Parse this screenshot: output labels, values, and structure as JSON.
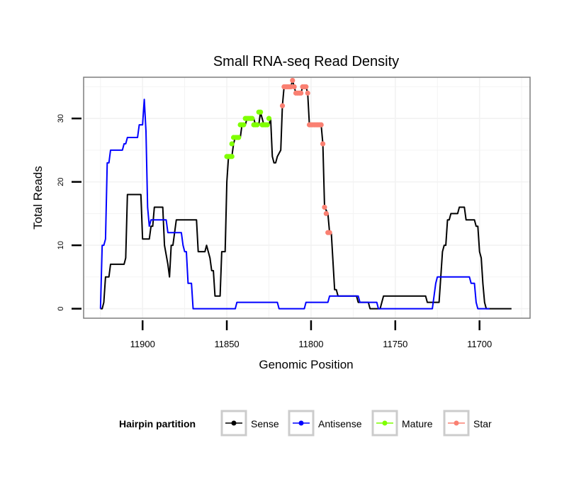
{
  "chart_data": {
    "type": "line",
    "title": "Small RNA-seq Read Density",
    "xlabel": "Genomic Position",
    "ylabel": "Total Reads",
    "x_reversed": true,
    "xlim": [
      11935,
      11670
    ],
    "ylim": [
      -1.5,
      36.5
    ],
    "x_ticks": [
      11900,
      11850,
      11800,
      11750,
      11700
    ],
    "y_ticks": [
      0,
      10,
      20,
      30
    ],
    "grid": true,
    "legend": {
      "title": "Hairpin partition",
      "position": "bottom",
      "entries": [
        {
          "label": "Sense",
          "color": "#000000"
        },
        {
          "label": "Antisense",
          "color": "#0000ff"
        },
        {
          "label": "Mature",
          "color": "#7fff00"
        },
        {
          "label": "Star",
          "color": "#fa8072"
        }
      ]
    },
    "series": [
      {
        "name": "Sense",
        "color": "#000000",
        "kind": "line",
        "points": [
          [
            11925,
            0
          ],
          [
            11924,
            0
          ],
          [
            11923,
            1
          ],
          [
            11922,
            5
          ],
          [
            11920,
            5
          ],
          [
            11919,
            7
          ],
          [
            11911,
            7
          ],
          [
            11910,
            8
          ],
          [
            11909,
            18
          ],
          [
            11901,
            18
          ],
          [
            11900,
            11
          ],
          [
            11896,
            11
          ],
          [
            11895,
            13
          ],
          [
            11894,
            13
          ],
          [
            11893,
            16
          ],
          [
            11888,
            16
          ],
          [
            11887,
            10
          ],
          [
            11885,
            7
          ],
          [
            11884,
            5
          ],
          [
            11883,
            10
          ],
          [
            11882,
            10
          ],
          [
            11880,
            14
          ],
          [
            11868,
            14
          ],
          [
            11867,
            9
          ],
          [
            11863,
            9
          ],
          [
            11862,
            10
          ],
          [
            11861,
            9
          ],
          [
            11860,
            8
          ],
          [
            11859,
            6
          ],
          [
            11858,
            6
          ],
          [
            11857,
            2
          ],
          [
            11854,
            2
          ],
          [
            11853,
            9
          ],
          [
            11851,
            9
          ],
          [
            11850,
            20
          ],
          [
            11849,
            24
          ],
          [
            11847,
            24
          ],
          [
            11846,
            26
          ],
          [
            11845,
            27
          ],
          [
            11842,
            27
          ],
          [
            11841,
            29
          ],
          [
            11839,
            29
          ],
          [
            11838,
            30
          ],
          [
            11834,
            30
          ],
          [
            11833,
            29
          ],
          [
            11831,
            29
          ],
          [
            11830,
            31
          ],
          [
            11828,
            29
          ],
          [
            11825,
            29
          ],
          [
            11824,
            30
          ],
          [
            11823,
            24
          ],
          [
            11822,
            23
          ],
          [
            11821,
            23
          ],
          [
            11820,
            24
          ],
          [
            11818,
            25
          ],
          [
            11817,
            32
          ],
          [
            11816,
            35
          ],
          [
            11812,
            35
          ],
          [
            11811,
            36
          ],
          [
            11810,
            35
          ],
          [
            11809,
            34
          ],
          [
            11806,
            34
          ],
          [
            11805,
            35
          ],
          [
            11803,
            35
          ],
          [
            11802,
            34
          ],
          [
            11801,
            29
          ],
          [
            11794,
            29
          ],
          [
            11793,
            26
          ],
          [
            11792,
            16
          ],
          [
            11790,
            15
          ],
          [
            11789,
            12
          ],
          [
            11788,
            12
          ],
          [
            11786,
            3
          ],
          [
            11785,
            3
          ],
          [
            11784,
            2
          ],
          [
            11773,
            2
          ],
          [
            11772,
            1
          ],
          [
            11766,
            1
          ],
          [
            11765,
            0
          ],
          [
            11759,
            0
          ],
          [
            11758,
            1
          ],
          [
            11757,
            2
          ],
          [
            11732,
            2
          ],
          [
            11731,
            1
          ],
          [
            11724,
            1
          ],
          [
            11723,
            5
          ],
          [
            11722,
            9
          ],
          [
            11721,
            10
          ],
          [
            11720,
            10
          ],
          [
            11719,
            14
          ],
          [
            11718,
            14
          ],
          [
            11717,
            15
          ],
          [
            11713,
            15
          ],
          [
            11712,
            16
          ],
          [
            11709,
            16
          ],
          [
            11708,
            14
          ],
          [
            11703,
            14
          ],
          [
            11702,
            13
          ],
          [
            11701,
            13
          ],
          [
            11700,
            9
          ],
          [
            11699,
            8
          ],
          [
            11698,
            4
          ],
          [
            11697,
            1
          ],
          [
            11696,
            0
          ],
          [
            11681,
            0
          ]
        ]
      },
      {
        "name": "Antisense",
        "color": "#0000ff",
        "kind": "line",
        "points": [
          [
            11925,
            0
          ],
          [
            11924,
            10
          ],
          [
            11923,
            10
          ],
          [
            11922,
            11
          ],
          [
            11921,
            23
          ],
          [
            11920,
            23
          ],
          [
            11919,
            25
          ],
          [
            11912,
            25
          ],
          [
            11911,
            26
          ],
          [
            11910,
            26
          ],
          [
            11909,
            27
          ],
          [
            11903,
            27
          ],
          [
            11902,
            29
          ],
          [
            11900,
            29
          ],
          [
            11899,
            33
          ],
          [
            11898,
            28
          ],
          [
            11897,
            16
          ],
          [
            11896,
            13
          ],
          [
            11895,
            14
          ],
          [
            11886,
            14
          ],
          [
            11885,
            12
          ],
          [
            11877,
            12
          ],
          [
            11876,
            10
          ],
          [
            11875,
            9
          ],
          [
            11874,
            9
          ],
          [
            11873,
            4
          ],
          [
            11871,
            4
          ],
          [
            11870,
            0
          ],
          [
            11845,
            0
          ],
          [
            11844,
            1
          ],
          [
            11820,
            1
          ],
          [
            11819,
            0
          ],
          [
            11804,
            0
          ],
          [
            11803,
            1
          ],
          [
            11790,
            1
          ],
          [
            11789,
            2
          ],
          [
            11772,
            2
          ],
          [
            11771,
            1
          ],
          [
            11761,
            1
          ],
          [
            11760,
            0
          ],
          [
            11728,
            0
          ],
          [
            11727,
            2
          ],
          [
            11726,
            4
          ],
          [
            11725,
            5
          ],
          [
            11706,
            5
          ],
          [
            11705,
            4
          ],
          [
            11703,
            4
          ],
          [
            11702,
            1
          ],
          [
            11701,
            0
          ],
          [
            11694,
            0
          ]
        ]
      },
      {
        "name": "Mature",
        "color": "#7fff00",
        "kind": "points",
        "points": [
          [
            11850,
            24
          ],
          [
            11849,
            24
          ],
          [
            11848,
            24
          ],
          [
            11847,
            24
          ],
          [
            11847,
            26
          ],
          [
            11846,
            27
          ],
          [
            11845,
            27
          ],
          [
            11844,
            27
          ],
          [
            11843,
            27
          ],
          [
            11842,
            29
          ],
          [
            11841,
            29
          ],
          [
            11840,
            29
          ],
          [
            11839,
            30
          ],
          [
            11838,
            30
          ],
          [
            11837,
            30
          ],
          [
            11836,
            30
          ],
          [
            11835,
            30
          ],
          [
            11834,
            29
          ],
          [
            11833,
            29
          ],
          [
            11832,
            29
          ],
          [
            11831,
            31
          ],
          [
            11830,
            31
          ],
          [
            11829,
            29
          ],
          [
            11828,
            29
          ],
          [
            11827,
            29
          ],
          [
            11826,
            29
          ],
          [
            11825,
            30
          ]
        ]
      },
      {
        "name": "Star",
        "color": "#fa8072",
        "kind": "points",
        "points": [
          [
            11817,
            32
          ],
          [
            11816,
            35
          ],
          [
            11815,
            35
          ],
          [
            11814,
            35
          ],
          [
            11813,
            35
          ],
          [
            11812,
            35
          ],
          [
            11811,
            36
          ],
          [
            11810,
            35
          ],
          [
            11809,
            34
          ],
          [
            11808,
            34
          ],
          [
            11807,
            34
          ],
          [
            11806,
            34
          ],
          [
            11805,
            35
          ],
          [
            11804,
            35
          ],
          [
            11803,
            35
          ],
          [
            11802,
            34
          ],
          [
            11801,
            29
          ],
          [
            11800,
            29
          ],
          [
            11799,
            29
          ],
          [
            11798,
            29
          ],
          [
            11797,
            29
          ],
          [
            11796,
            29
          ],
          [
            11795,
            29
          ],
          [
            11794,
            29
          ],
          [
            11793,
            26
          ],
          [
            11792,
            16
          ],
          [
            11791,
            15
          ],
          [
            11790,
            12
          ],
          [
            11789,
            12
          ]
        ]
      }
    ]
  }
}
